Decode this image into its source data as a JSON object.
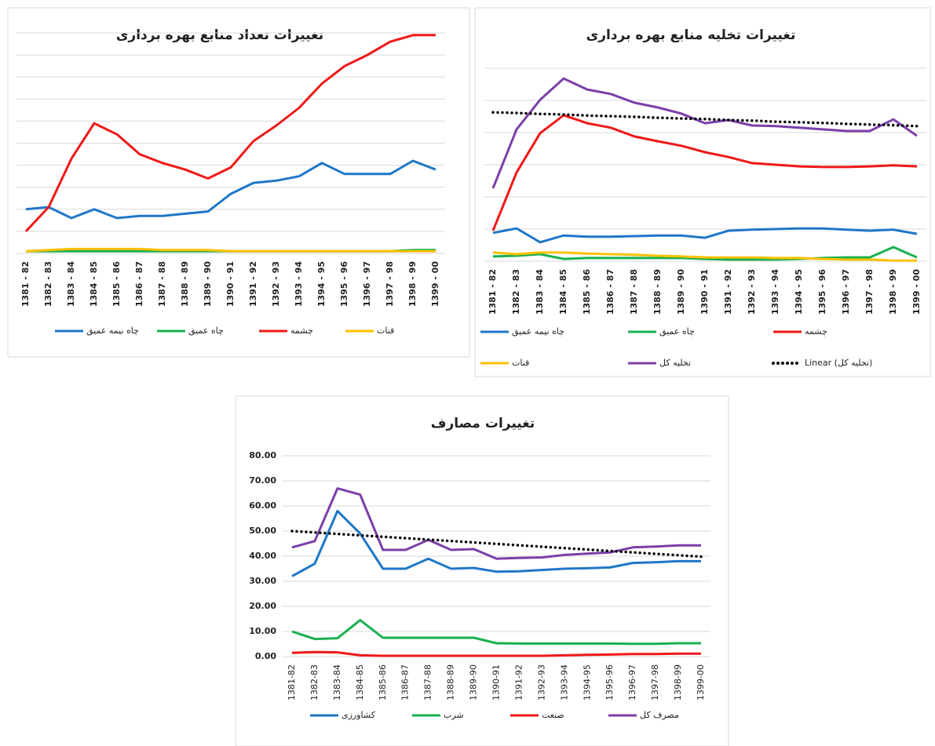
{
  "chart_data": [
    {
      "type": "line",
      "title": "تغییرات تعداد منابع بهره برداری",
      "categories": [
        "1381 - 82",
        "1382 - 83",
        "1383 - 84",
        "1384 - 85",
        "1385 - 86",
        "1386 - 87",
        "1387 - 88",
        "1388 - 89",
        "1389 - 90",
        "1390 - 91",
        "1391 - 92",
        "1392 - 93",
        "1393 - 94",
        "1394 - 95",
        "1395 - 96",
        "1396 - 97",
        "1397 - 98",
        "1398 - 99",
        "1399 - 00"
      ],
      "ylim": [
        0,
        10
      ],
      "yticks": [
        0,
        1,
        2,
        3,
        4,
        5,
        6,
        7,
        8,
        9,
        10
      ],
      "ytick_labels": false,
      "grid": true,
      "series": [
        {
          "name": "چاه نیمه عمیق",
          "color": "#1f77c8",
          "values": [
            2.0,
            2.1,
            1.6,
            2.0,
            1.6,
            1.7,
            1.7,
            1.8,
            1.9,
            2.7,
            3.2,
            3.3,
            3.5,
            4.1,
            3.6,
            3.6,
            3.6,
            4.2,
            3.8
          ]
        },
        {
          "name": "چاه عمیق",
          "color": "#19b050",
          "values": [
            0.1,
            0.1,
            0.1,
            0.1,
            0.1,
            0.1,
            0.1,
            0.1,
            0.1,
            0.1,
            0.1,
            0.1,
            0.1,
            0.1,
            0.1,
            0.1,
            0.1,
            0.15,
            0.15
          ]
        },
        {
          "name": "چشمه",
          "color": "#f01818",
          "values": [
            1.0,
            2.1,
            4.3,
            5.9,
            5.4,
            4.5,
            4.1,
            3.8,
            3.4,
            3.9,
            5.1,
            5.8,
            6.6,
            7.7,
            8.5,
            9.0,
            9.6,
            9.9,
            9.9
          ]
        },
        {
          "name": "قنات",
          "color": "#ffc000",
          "values": [
            0.1,
            0.15,
            0.2,
            0.2,
            0.2,
            0.2,
            0.15,
            0.15,
            0.15,
            0.1,
            0.1,
            0.1,
            0.1,
            0.1,
            0.1,
            0.1,
            0.1,
            0.1,
            0.1
          ]
        }
      ]
    },
    {
      "type": "line",
      "title": "تغییرات تخلیه منابع بهره برداری",
      "categories": [
        "1381 - 82",
        "1382 - 83",
        "1383 - 84",
        "1384 - 85",
        "1385 - 86",
        "1386 - 87",
        "1387 - 88",
        "1388 - 89",
        "1389 - 90",
        "1390 - 91",
        "1391 - 92",
        "1392 - 93",
        "1393 - 94",
        "1394 - 95",
        "1395 - 96",
        "1396 - 97",
        "1397 - 98",
        "1398 - 99",
        "1399 - 00"
      ],
      "ylim": [
        0,
        6
      ],
      "yticks": [
        0,
        1,
        2,
        3,
        4,
        5,
        6
      ],
      "ytick_labels": false,
      "grid": true,
      "series": [
        {
          "name": "چاه نیمه عمیق",
          "color": "#1f77c8",
          "values": [
            0.88,
            1.02,
            0.59,
            0.8,
            0.76,
            0.76,
            0.78,
            0.8,
            0.8,
            0.73,
            0.95,
            0.98,
            1.0,
            1.02,
            1.02,
            0.98,
            0.95,
            0.98,
            0.85
          ]
        },
        {
          "name": "چاه عمیق",
          "color": "#19b050",
          "values": [
            0.15,
            0.17,
            0.22,
            0.07,
            0.1,
            0.1,
            0.1,
            0.1,
            0.1,
            0.07,
            0.05,
            0.05,
            0.05,
            0.07,
            0.1,
            0.12,
            0.12,
            0.44,
            0.12
          ]
        },
        {
          "name": "چشمه",
          "color": "#f01818",
          "values": [
            0.95,
            2.76,
            3.98,
            4.54,
            4.29,
            4.15,
            3.88,
            3.73,
            3.59,
            3.39,
            3.24,
            3.05,
            3.0,
            2.95,
            2.93,
            2.93,
            2.95,
            2.98,
            2.95
          ]
        },
        {
          "name": "قنات",
          "color": "#ffc000",
          "values": [
            0.27,
            0.22,
            0.27,
            0.27,
            0.24,
            0.22,
            0.2,
            0.17,
            0.15,
            0.12,
            0.12,
            0.12,
            0.1,
            0.1,
            0.07,
            0.05,
            0.05,
            0.02,
            0.02
          ]
        },
        {
          "name": "تخلیه کل",
          "color": "#7b3fa8",
          "values": [
            2.27,
            4.1,
            5.02,
            5.68,
            5.34,
            5.2,
            4.93,
            4.78,
            4.59,
            4.29,
            4.39,
            4.22,
            4.2,
            4.15,
            4.1,
            4.05,
            4.05,
            4.41,
            3.9
          ]
        },
        {
          "name": "Linear (تخلیه کل)",
          "color": "#000000",
          "style": "dotted",
          "values": [
            4.63,
            4.61,
            4.58,
            4.56,
            4.53,
            4.51,
            4.49,
            4.46,
            4.44,
            4.42,
            4.39,
            4.37,
            4.34,
            4.32,
            4.3,
            4.27,
            4.25,
            4.23,
            4.2
          ]
        }
      ]
    },
    {
      "type": "line",
      "title": "تغییرات مصارف",
      "categories": [
        "1381-82",
        "1382-83",
        "1383-84",
        "1384-85",
        "1385-86",
        "1386-87",
        "1387-88",
        "1388-89",
        "1389-90",
        "1390-91",
        "1391-92",
        "1392-93",
        "1393-94",
        "1394-95",
        "1395-96",
        "1396-97",
        "1397-98",
        "1398-99",
        "1399-00"
      ],
      "ylim": [
        0,
        80
      ],
      "yticks": [
        {
          "value": 0,
          "label": "0.00"
        },
        {
          "value": 10,
          "label": "10.00"
        },
        {
          "value": 20,
          "label": "20.00"
        },
        {
          "value": 30,
          "label": "30.00"
        },
        {
          "value": 40,
          "label": "40.00"
        },
        {
          "value": 50,
          "label": "50.00"
        },
        {
          "value": 60,
          "label": "60.00"
        },
        {
          "value": 70,
          "label": "70.00"
        },
        {
          "value": 80,
          "label": "80.00"
        }
      ],
      "grid": true,
      "series": [
        {
          "name": "کشاورزی",
          "color": "#1f77c8",
          "values": [
            32,
            37,
            58,
            49,
            35,
            35,
            39,
            35,
            35.3,
            33.8,
            34,
            34.5,
            35,
            35.2,
            35.5,
            37.3,
            37.6,
            38,
            38
          ]
        },
        {
          "name": "شرب",
          "color": "#19b050",
          "values": [
            10,
            7,
            7.3,
            14.5,
            7.5,
            7.5,
            7.5,
            7.5,
            7.5,
            5.3,
            5.2,
            5.2,
            5.2,
            5.2,
            5.2,
            5.1,
            5.1,
            5.3,
            5.3
          ]
        },
        {
          "name": "صنعت",
          "color": "#f01818",
          "values": [
            1.5,
            1.8,
            1.7,
            0.5,
            0.3,
            0.3,
            0.3,
            0.3,
            0.3,
            0.3,
            0.3,
            0.3,
            0.5,
            0.7,
            0.8,
            1,
            1,
            1.2,
            1.2
          ]
        },
        {
          "name": "مصرف کل",
          "color": "#7b3fa8",
          "values": [
            43.5,
            46,
            67,
            64.5,
            42.5,
            42.5,
            46.5,
            42.5,
            42.8,
            39,
            39.3,
            39.5,
            40.5,
            41,
            41.5,
            43.5,
            43.8,
            44.3,
            44.3
          ]
        }
      ],
      "trendline": {
        "color": "#000000",
        "style": "dotted",
        "values": [
          50,
          49.43,
          48.87,
          48.3,
          47.73,
          47.17,
          46.6,
          46.03,
          45.47,
          44.9,
          44.33,
          43.77,
          43.2,
          42.63,
          42.07,
          41.5,
          40.93,
          40.37,
          39.8
        ]
      }
    }
  ]
}
